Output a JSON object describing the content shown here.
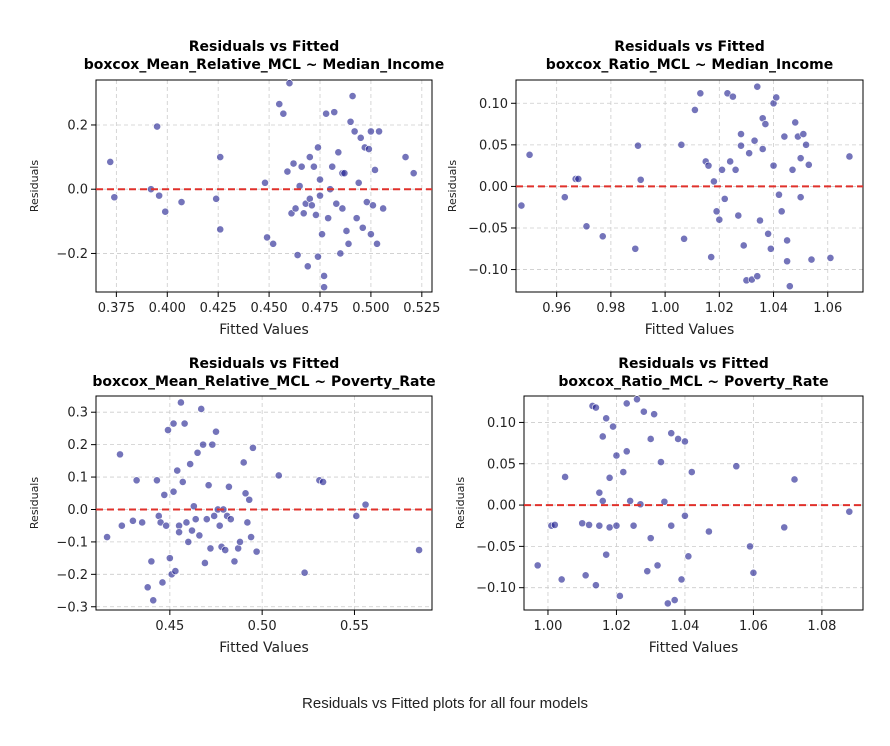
{
  "caption": "Residuals vs Fitted plots for all four models",
  "colors": {
    "point_fill": "#1f1f8f",
    "point_edge": "#ffffff",
    "zero_line": "#e0312b",
    "grid": "#cccccc",
    "axis": "#000000"
  },
  "chart_data": [
    {
      "type": "scatter",
      "title": "Residuals vs Fitted",
      "subtitle": "boxcox_Mean_Relative_MCL ~ Median_Income",
      "xlabel": "Fitted Values",
      "ylabel": "Residuals",
      "xlim": [
        0.365,
        0.53
      ],
      "ylim": [
        -0.32,
        0.34
      ],
      "xticks": [
        0.375,
        0.4,
        0.425,
        0.45,
        0.475,
        0.5,
        0.525
      ],
      "xtick_labels": [
        "0.375",
        "0.400",
        "0.425",
        "0.450",
        "0.475",
        "0.500",
        "0.525"
      ],
      "yticks": [
        -0.2,
        0.0,
        0.2
      ],
      "ytick_labels": [
        "−0.2",
        "0.0",
        "0.2"
      ],
      "grid": true,
      "reference_line": 0,
      "x": [
        0.372,
        0.374,
        0.392,
        0.395,
        0.396,
        0.399,
        0.407,
        0.424,
        0.426,
        0.426,
        0.448,
        0.449,
        0.452,
        0.455,
        0.457,
        0.459,
        0.46,
        0.461,
        0.462,
        0.463,
        0.464,
        0.465,
        0.466,
        0.467,
        0.468,
        0.469,
        0.47,
        0.47,
        0.471,
        0.472,
        0.473,
        0.474,
        0.474,
        0.475,
        0.475,
        0.476,
        0.477,
        0.477,
        0.478,
        0.479,
        0.48,
        0.481,
        0.482,
        0.483,
        0.484,
        0.485,
        0.486,
        0.486,
        0.487,
        0.488,
        0.489,
        0.49,
        0.491,
        0.492,
        0.493,
        0.494,
        0.495,
        0.496,
        0.497,
        0.498,
        0.499,
        0.5,
        0.5,
        0.501,
        0.502,
        0.503,
        0.504,
        0.506,
        0.517,
        0.521
      ],
      "y": [
        0.085,
        -0.025,
        0.0,
        0.195,
        -0.02,
        -0.07,
        -0.04,
        -0.03,
        -0.125,
        0.1,
        0.02,
        -0.15,
        -0.17,
        0.265,
        0.235,
        0.055,
        0.33,
        -0.075,
        0.08,
        -0.06,
        -0.205,
        0.01,
        0.07,
        -0.075,
        -0.045,
        -0.24,
        -0.03,
        0.1,
        -0.05,
        0.07,
        -0.08,
        0.13,
        -0.21,
        -0.02,
        0.03,
        -0.14,
        -0.305,
        -0.27,
        0.235,
        -0.09,
        0.0,
        0.07,
        0.24,
        -0.045,
        0.115,
        -0.2,
        -0.06,
        0.05,
        0.05,
        -0.13,
        -0.17,
        0.21,
        0.29,
        0.18,
        -0.09,
        0.02,
        0.16,
        -0.12,
        0.13,
        -0.04,
        0.125,
        0.18,
        -0.14,
        -0.05,
        0.06,
        -0.17,
        0.18,
        -0.06,
        0.1,
        0.05
      ]
    },
    {
      "type": "scatter",
      "title": "Residuals vs Fitted",
      "subtitle": "boxcox_Ratio_MCL ~ Median_Income",
      "xlabel": "Fitted Values",
      "ylabel": "Residuals",
      "xlim": [
        0.945,
        1.073
      ],
      "ylim": [
        -0.127,
        0.128
      ],
      "xticks": [
        0.96,
        0.98,
        1.0,
        1.02,
        1.04,
        1.06
      ],
      "xtick_labels": [
        "0.96",
        "0.98",
        "1.00",
        "1.02",
        "1.04",
        "1.06"
      ],
      "yticks": [
        -0.1,
        -0.05,
        0.0,
        0.05,
        0.1
      ],
      "ytick_labels": [
        "−0.10",
        "−0.05",
        "0.00",
        "0.05",
        "0.10"
      ],
      "grid": true,
      "reference_line": 0,
      "x": [
        0.947,
        0.95,
        0.963,
        0.967,
        0.968,
        0.971,
        0.977,
        0.989,
        0.99,
        0.991,
        1.006,
        1.007,
        1.011,
        1.013,
        1.015,
        1.016,
        1.017,
        1.018,
        1.019,
        1.02,
        1.021,
        1.022,
        1.023,
        1.024,
        1.025,
        1.026,
        1.027,
        1.028,
        1.028,
        1.029,
        1.03,
        1.031,
        1.032,
        1.033,
        1.034,
        1.034,
        1.035,
        1.036,
        1.036,
        1.037,
        1.038,
        1.039,
        1.04,
        1.04,
        1.041,
        1.042,
        1.043,
        1.044,
        1.045,
        1.045,
        1.046,
        1.047,
        1.048,
        1.049,
        1.05,
        1.05,
        1.051,
        1.052,
        1.053,
        1.054,
        1.061,
        1.068
      ],
      "y": [
        -0.023,
        0.038,
        -0.013,
        0.009,
        0.009,
        -0.048,
        -0.06,
        -0.075,
        0.049,
        0.008,
        0.05,
        -0.063,
        0.092,
        0.112,
        0.03,
        0.025,
        -0.085,
        0.006,
        -0.03,
        -0.04,
        0.02,
        -0.015,
        0.112,
        0.03,
        0.108,
        0.02,
        -0.035,
        0.049,
        0.063,
        -0.071,
        -0.113,
        0.04,
        -0.112,
        0.055,
        0.12,
        -0.108,
        -0.041,
        0.045,
        0.082,
        0.075,
        -0.057,
        -0.075,
        0.1,
        0.025,
        0.107,
        -0.01,
        -0.03,
        0.06,
        -0.065,
        -0.09,
        -0.12,
        0.02,
        0.077,
        0.06,
        0.034,
        -0.013,
        0.063,
        0.05,
        0.026,
        -0.088,
        -0.086,
        0.036
      ]
    },
    {
      "type": "scatter",
      "title": "Residuals vs Fitted",
      "subtitle": "boxcox_Mean_Relative_MCL ~ Poverty_Rate",
      "xlabel": "Fitted Values",
      "ylabel": "Residuals",
      "xlim": [
        0.41,
        0.592
      ],
      "ylim": [
        -0.31,
        0.35
      ],
      "xticks": [
        0.45,
        0.5,
        0.55
      ],
      "xtick_labels": [
        "0.45",
        "0.50",
        "0.55"
      ],
      "yticks": [
        -0.3,
        -0.2,
        -0.1,
        0.0,
        0.1,
        0.2,
        0.3
      ],
      "ytick_labels": [
        "−0.3",
        "−0.2",
        "−0.1",
        "0.0",
        "0.1",
        "0.2",
        "0.3"
      ],
      "grid": true,
      "reference_line": 0,
      "x": [
        0.416,
        0.423,
        0.424,
        0.43,
        0.432,
        0.435,
        0.438,
        0.44,
        0.441,
        0.443,
        0.444,
        0.445,
        0.446,
        0.447,
        0.448,
        0.449,
        0.45,
        0.451,
        0.452,
        0.452,
        0.453,
        0.454,
        0.455,
        0.455,
        0.456,
        0.457,
        0.458,
        0.459,
        0.46,
        0.461,
        0.462,
        0.463,
        0.464,
        0.465,
        0.466,
        0.467,
        0.468,
        0.469,
        0.47,
        0.471,
        0.472,
        0.473,
        0.474,
        0.475,
        0.476,
        0.477,
        0.478,
        0.479,
        0.48,
        0.481,
        0.482,
        0.483,
        0.485,
        0.487,
        0.488,
        0.49,
        0.491,
        0.492,
        0.493,
        0.494,
        0.495,
        0.497,
        0.509,
        0.523,
        0.531,
        0.533,
        0.551,
        0.556,
        0.585
      ],
      "y": [
        -0.085,
        0.17,
        -0.05,
        -0.035,
        0.09,
        -0.04,
        -0.24,
        -0.16,
        -0.28,
        0.09,
        -0.02,
        -0.04,
        -0.225,
        0.045,
        -0.05,
        0.245,
        -0.15,
        -0.2,
        0.265,
        0.055,
        -0.19,
        0.12,
        -0.05,
        -0.07,
        0.33,
        0.085,
        0.265,
        -0.04,
        -0.1,
        0.14,
        -0.065,
        0.01,
        -0.03,
        0.175,
        -0.08,
        0.31,
        0.2,
        -0.165,
        -0.03,
        0.075,
        -0.12,
        0.2,
        -0.02,
        0.24,
        0.0,
        -0.05,
        -0.115,
        0.0,
        -0.125,
        -0.02,
        0.07,
        -0.03,
        -0.16,
        -0.12,
        -0.1,
        0.145,
        0.05,
        -0.04,
        0.03,
        -0.085,
        0.19,
        -0.13,
        0.105,
        -0.195,
        0.09,
        0.085,
        -0.02,
        0.015,
        -0.125
      ]
    },
    {
      "type": "scatter",
      "title": "Residuals vs Fitted",
      "subtitle": "boxcox_Ratio_MCL ~ Poverty_Rate",
      "xlabel": "Fitted Values",
      "ylabel": "Residuals",
      "xlim": [
        0.993,
        1.092
      ],
      "ylim": [
        -0.127,
        0.132
      ],
      "xticks": [
        1.0,
        1.02,
        1.04,
        1.06,
        1.08
      ],
      "xtick_labels": [
        "1.00",
        "1.02",
        "1.04",
        "1.06",
        "1.08"
      ],
      "yticks": [
        -0.1,
        -0.05,
        0.0,
        0.05,
        0.1
      ],
      "ytick_labels": [
        "−0.10",
        "−0.05",
        "0.00",
        "0.05",
        "0.10"
      ],
      "grid": true,
      "reference_line": 0,
      "x": [
        0.997,
        1.001,
        1.002,
        1.004,
        1.005,
        1.01,
        1.011,
        1.012,
        1.013,
        1.014,
        1.014,
        1.015,
        1.015,
        1.016,
        1.016,
        1.017,
        1.017,
        1.018,
        1.018,
        1.019,
        1.02,
        1.02,
        1.021,
        1.022,
        1.023,
        1.023,
        1.024,
        1.025,
        1.026,
        1.027,
        1.028,
        1.029,
        1.03,
        1.03,
        1.031,
        1.032,
        1.033,
        1.034,
        1.035,
        1.036,
        1.036,
        1.037,
        1.038,
        1.039,
        1.04,
        1.04,
        1.041,
        1.042,
        1.047,
        1.055,
        1.059,
        1.06,
        1.069,
        1.072,
        1.088
      ],
      "y": [
        -0.073,
        -0.025,
        -0.024,
        -0.09,
        0.034,
        -0.022,
        -0.085,
        -0.024,
        0.12,
        -0.097,
        0.118,
        -0.025,
        0.015,
        0.005,
        0.083,
        -0.06,
        0.105,
        0.033,
        -0.027,
        0.095,
        -0.025,
        0.06,
        -0.11,
        0.04,
        0.123,
        0.065,
        0.005,
        -0.025,
        0.128,
        0.001,
        0.113,
        -0.08,
        -0.04,
        0.08,
        0.11,
        -0.073,
        0.052,
        0.004,
        -0.119,
        0.087,
        -0.025,
        -0.115,
        0.08,
        -0.09,
        -0.013,
        0.077,
        -0.062,
        0.04,
        -0.032,
        0.047,
        -0.05,
        -0.082,
        -0.027,
        0.031,
        -0.008
      ]
    }
  ]
}
